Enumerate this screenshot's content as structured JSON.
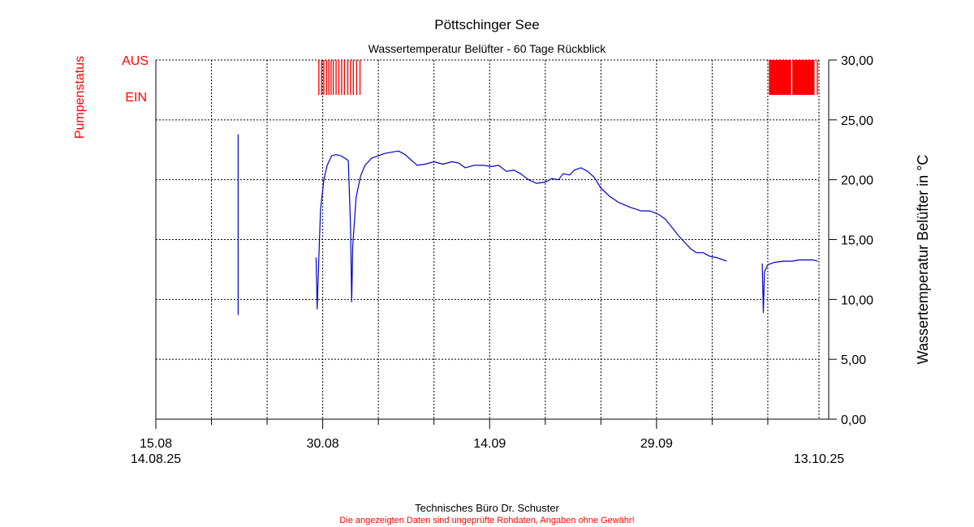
{
  "chart_data": {
    "type": "line",
    "title": "Pöttschinger See",
    "subtitle": "Wassertemperatur Belüfter - 60 Tage Rückblick",
    "ylabel_right": "Wassertemperatur Belüfter in °C",
    "ylabel_left": "Pumpenstatus",
    "pump_labels": {
      "off": "AUS",
      "on": "EIN"
    },
    "ylim": [
      0,
      30
    ],
    "y_ticks": [
      "0,00",
      "5,00",
      "10,00",
      "15,00",
      "20,00",
      "25,00",
      "30,00"
    ],
    "y_tick_values": [
      0,
      5,
      10,
      15,
      20,
      25,
      30
    ],
    "x_range_days": [
      0,
      59.6
    ],
    "x_tick_labels": [
      {
        "day": 0.0,
        "label": "15.08"
      },
      {
        "day": 15.0,
        "label": "30.08"
      },
      {
        "day": 30.0,
        "label": "14.09"
      },
      {
        "day": 45.0,
        "label": "29.09"
      }
    ],
    "x_minor_ticks_days": [
      5,
      10,
      20,
      25,
      35,
      40,
      50,
      55
    ],
    "x_range_labels": {
      "start": "14.08.25",
      "end": "13.10.25"
    },
    "grid": true,
    "series": [
      {
        "color": "#0000cc",
        "segments": [
          [
            [
              7.4,
              23.8
            ],
            [
              7.4,
              8.7
            ]
          ],
          [
            [
              14.4,
              13.5
            ],
            [
              14.5,
              9.2
            ],
            [
              14.6,
              12.0
            ],
            [
              14.8,
              17.5
            ],
            [
              15.1,
              20.0
            ],
            [
              15.4,
              21.2
            ],
            [
              15.8,
              22.0
            ],
            [
              16.2,
              22.1
            ],
            [
              16.6,
              22.0
            ],
            [
              17.0,
              21.8
            ],
            [
              17.3,
              21.6
            ],
            [
              17.5,
              16.0
            ],
            [
              17.6,
              9.8
            ],
            [
              17.7,
              14.5
            ],
            [
              18.0,
              18.5
            ],
            [
              18.4,
              20.3
            ],
            [
              18.8,
              21.2
            ],
            [
              19.4,
              21.8
            ],
            [
              20.0,
              22.0
            ],
            [
              20.6,
              22.2
            ],
            [
              21.2,
              22.3
            ],
            [
              21.8,
              22.4
            ],
            [
              22.4,
              22.1
            ],
            [
              23.0,
              21.6
            ],
            [
              23.5,
              21.2
            ],
            [
              24.2,
              21.3
            ],
            [
              25.0,
              21.5
            ],
            [
              25.8,
              21.3
            ],
            [
              26.6,
              21.5
            ],
            [
              27.2,
              21.4
            ],
            [
              27.8,
              21.0
            ],
            [
              28.6,
              21.2
            ],
            [
              29.4,
              21.2
            ],
            [
              30.2,
              21.1
            ],
            [
              30.8,
              21.2
            ],
            [
              31.5,
              20.7
            ],
            [
              32.2,
              20.8
            ],
            [
              32.8,
              20.5
            ],
            [
              33.5,
              20.0
            ],
            [
              34.2,
              19.7
            ],
            [
              35.0,
              19.8
            ],
            [
              35.6,
              20.1
            ],
            [
              36.2,
              20.0
            ],
            [
              36.6,
              20.5
            ],
            [
              37.2,
              20.4
            ],
            [
              37.6,
              20.8
            ],
            [
              38.2,
              21.0
            ],
            [
              38.8,
              20.7
            ],
            [
              39.4,
              20.2
            ],
            [
              40.0,
              19.3
            ],
            [
              40.8,
              18.6
            ],
            [
              41.6,
              18.1
            ],
            [
              42.6,
              17.7
            ],
            [
              43.6,
              17.4
            ],
            [
              44.4,
              17.4
            ],
            [
              45.2,
              17.1
            ],
            [
              45.8,
              16.7
            ],
            [
              46.4,
              16.0
            ],
            [
              47.0,
              15.3
            ],
            [
              47.6,
              14.7
            ],
            [
              48.1,
              14.2
            ],
            [
              48.6,
              13.9
            ],
            [
              49.2,
              13.9
            ],
            [
              49.8,
              13.6
            ],
            [
              50.4,
              13.5
            ],
            [
              51.0,
              13.3
            ],
            [
              51.3,
              13.2
            ]
          ],
          [
            [
              54.5,
              13.0
            ],
            [
              54.6,
              8.9
            ],
            [
              54.7,
              12.3
            ],
            [
              55.0,
              12.9
            ],
            [
              55.6,
              13.1
            ],
            [
              56.4,
              13.2
            ],
            [
              57.2,
              13.2
            ],
            [
              57.8,
              13.3
            ],
            [
              58.4,
              13.3
            ],
            [
              59.0,
              13.3
            ],
            [
              59.5,
              13.2
            ]
          ]
        ]
      }
    ],
    "pump_status": {
      "color": "#ff0000",
      "on_intervals": [
        [
          14.6,
          14.7
        ],
        [
          14.85,
          14.95
        ],
        [
          15.05,
          15.15
        ],
        [
          15.3,
          15.4
        ],
        [
          15.5,
          15.6
        ],
        [
          15.7,
          15.8
        ],
        [
          15.9,
          16.0
        ],
        [
          16.15,
          16.25
        ],
        [
          16.4,
          16.5
        ],
        [
          16.65,
          16.75
        ],
        [
          16.9,
          17.0
        ],
        [
          17.2,
          17.3
        ],
        [
          17.45,
          17.55
        ],
        [
          17.7,
          17.8
        ],
        [
          18.0,
          18.1
        ],
        [
          18.3,
          18.4
        ],
        [
          55.1,
          57.1
        ],
        [
          57.2,
          59.2
        ],
        [
          59.4,
          59.5
        ]
      ]
    }
  },
  "footer": {
    "credit": "Technisches Büro Dr. Schuster",
    "disclaimer": "Die angezeigten Daten sind ungeprüfte Rohdaten, Angaben ohne Gewähr!"
  }
}
